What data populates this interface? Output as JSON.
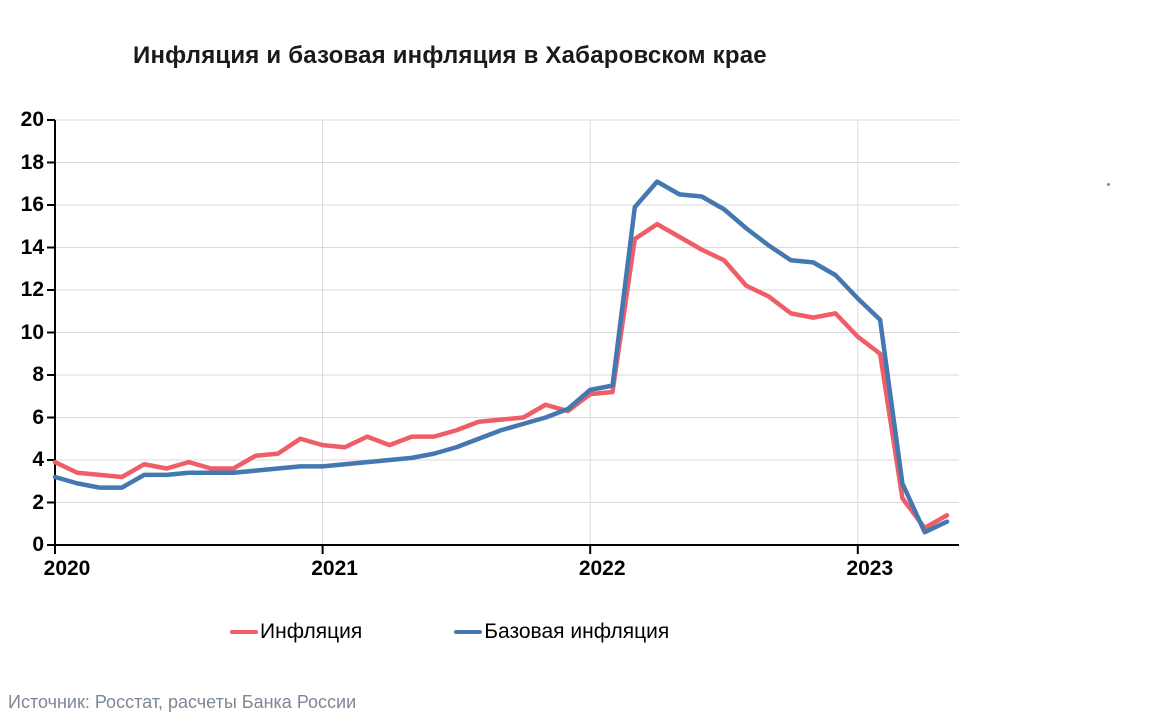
{
  "title": "Инфляция и базовая инфляция в Хабаровском крае",
  "source": "Источник: Росстат, расчеты Банка России",
  "legend": [
    {
      "label": "Инфляция",
      "color": "#EF5D67"
    },
    {
      "label": "Базовая инфляция",
      "color": "#4478B0"
    }
  ],
  "colors": {
    "inflation_line": "#EF5D67",
    "core_inflation_line": "#4478B0",
    "gridline": "#D9D9D9",
    "axis": "#000000",
    "source_text": "#7D8795"
  },
  "chart_data": {
    "type": "line",
    "title": "Инфляция и базовая инфляция в Хабаровском крае",
    "xlabel": "",
    "ylabel": "",
    "ylim": [
      0,
      20
    ],
    "y_ticks": [
      0,
      2,
      4,
      6,
      8,
      10,
      12,
      14,
      16,
      18,
      20
    ],
    "x_ticks": [
      {
        "label": "2020",
        "month_index": 0
      },
      {
        "label": "2021",
        "month_index": 12
      },
      {
        "label": "2022",
        "month_index": 24
      },
      {
        "label": "2023",
        "month_index": 36
      }
    ],
    "grid": "horizontal gridlines every 2 + vertical gridlines at year starts",
    "legend_position": "bottom",
    "x": [
      "2020-01",
      "2020-02",
      "2020-03",
      "2020-04",
      "2020-05",
      "2020-06",
      "2020-07",
      "2020-08",
      "2020-09",
      "2020-10",
      "2020-11",
      "2020-12",
      "2021-01",
      "2021-02",
      "2021-03",
      "2021-04",
      "2021-05",
      "2021-06",
      "2021-07",
      "2021-08",
      "2021-09",
      "2021-10",
      "2021-11",
      "2021-12",
      "2022-01",
      "2022-02",
      "2022-03",
      "2022-04",
      "2022-05",
      "2022-06",
      "2022-07",
      "2022-08",
      "2022-09",
      "2022-10",
      "2022-11",
      "2022-12",
      "2023-01",
      "2023-02",
      "2023-03",
      "2023-04",
      "2023-05"
    ],
    "series": [
      {
        "name": "Инфляция",
        "color": "#EF5D67",
        "values": [
          3.9,
          3.4,
          3.3,
          3.2,
          3.8,
          3.6,
          3.9,
          3.6,
          3.6,
          4.2,
          4.3,
          5.0,
          4.7,
          4.6,
          5.1,
          4.7,
          5.1,
          5.1,
          5.4,
          5.8,
          5.9,
          6.0,
          6.6,
          6.3,
          7.1,
          7.2,
          14.4,
          15.1,
          14.5,
          13.9,
          13.4,
          12.2,
          11.7,
          10.9,
          10.7,
          10.9,
          9.8,
          9.0,
          2.2,
          0.8,
          1.4
        ]
      },
      {
        "name": "Базовая инфляция",
        "color": "#4478B0",
        "values": [
          3.2,
          2.9,
          2.7,
          2.7,
          3.3,
          3.3,
          3.4,
          3.4,
          3.4,
          3.5,
          3.6,
          3.7,
          3.7,
          3.8,
          3.9,
          4.0,
          4.1,
          4.3,
          4.6,
          5.0,
          5.4,
          5.7,
          6.0,
          6.4,
          7.3,
          7.5,
          15.9,
          17.1,
          16.5,
          16.4,
          15.8,
          14.9,
          14.1,
          13.4,
          13.3,
          12.7,
          11.6,
          10.6,
          2.9,
          0.6,
          1.1
        ]
      }
    ]
  }
}
